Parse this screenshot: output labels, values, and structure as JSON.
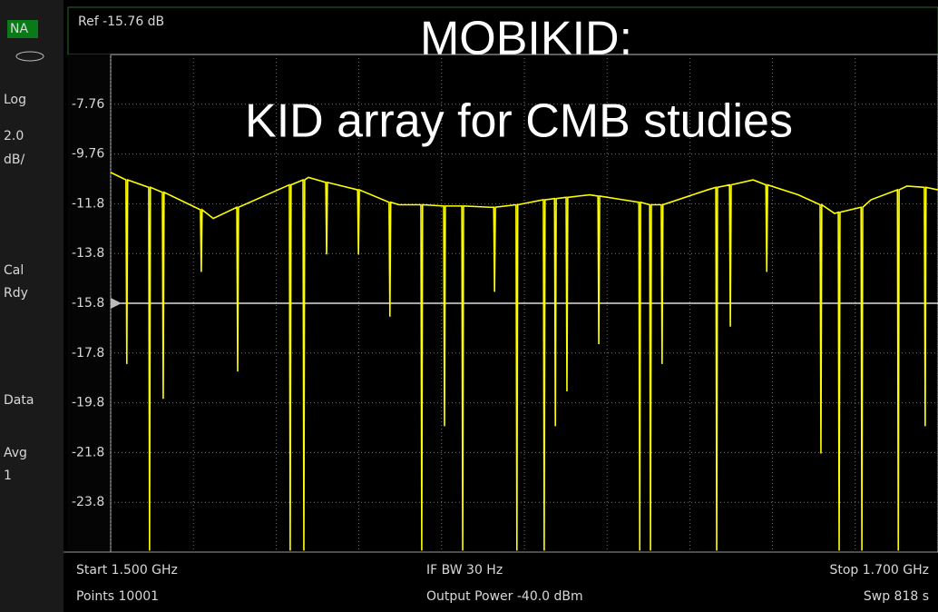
{
  "chart_data": {
    "type": "line",
    "title": "MOBIKID:",
    "subtitle": "KID array for CMB studies",
    "color": "#ffff00",
    "xlim": [
      1.5,
      1.7
    ],
    "xticks": [
      1.5,
      1.52,
      1.54,
      1.56,
      1.58,
      1.6,
      1.62,
      1.64,
      1.66,
      1.68,
      1.7
    ],
    "ylim": [
      -25.76,
      -5.76
    ],
    "yticks": [
      -7.76,
      -9.76,
      {
        "value": -11.76,
        "label": "-11.8"
      },
      {
        "value": -13.76,
        "label": "-13.8"
      },
      {
        "value": -15.76,
        "label": "-15.8"
      },
      {
        "value": -17.76,
        "label": "-17.8"
      },
      {
        "value": -19.76,
        "label": "-19.8"
      },
      {
        "value": -21.76,
        "label": "-21.8"
      },
      {
        "value": -23.76,
        "label": "-23.8"
      }
    ],
    "grid": true,
    "reference_line": {
      "value": -15.76,
      "label": "Ref -15.76 dB"
    },
    "x": [
      1.5,
      1.5037,
      1.5039,
      1.5041,
      1.5092,
      1.5094,
      1.5096,
      1.5125,
      1.5127,
      1.5129,
      1.5217,
      1.5219,
      1.5221,
      1.5248,
      1.5305,
      1.5307,
      1.5309,
      1.5432,
      1.5434,
      1.5436,
      1.5465,
      1.5467,
      1.5469,
      1.5478,
      1.552,
      1.5522,
      1.5524,
      1.5597,
      1.5599,
      1.5601,
      1.5673,
      1.5675,
      1.5677,
      1.5697,
      1.575,
      1.5752,
      1.5754,
      1.5805,
      1.5807,
      1.5809,
      1.5849,
      1.5851,
      1.5853,
      1.5917,
      1.5926,
      1.5928,
      1.593,
      1.598,
      1.5982,
      1.5984,
      1.6046,
      1.6048,
      1.605,
      1.6073,
      1.6075,
      1.6077,
      1.6101,
      1.6103,
      1.6105,
      1.6158,
      1.6178,
      1.618,
      1.6182,
      1.6277,
      1.6279,
      1.6281,
      1.6303,
      1.6305,
      1.6307,
      1.6331,
      1.6333,
      1.6335,
      1.6443,
      1.6463,
      1.6465,
      1.6467,
      1.6496,
      1.6498,
      1.65,
      1.6553,
      1.6584,
      1.6586,
      1.6588,
      1.6662,
      1.6715,
      1.6717,
      1.6719,
      1.675,
      1.6759,
      1.6761,
      1.6763,
      1.6814,
      1.6816,
      1.6818,
      1.6838,
      1.6902,
      1.6904,
      1.6906,
      1.6925,
      1.6967,
      1.6969,
      1.6971,
      1.7
    ],
    "values": [
      -10.5,
      -10.8,
      -18.2,
      -10.8,
      -11.1,
      -25.7,
      -11.1,
      -11.3,
      -19.6,
      -11.3,
      -12.0,
      -14.5,
      -12.0,
      -12.35,
      -11.9,
      -18.5,
      -11.9,
      -11.0,
      -25.7,
      -11.0,
      -10.8,
      -25.7,
      -10.8,
      -10.7,
      -10.9,
      -13.8,
      -10.9,
      -11.2,
      -13.8,
      -11.2,
      -11.7,
      -16.3,
      -11.7,
      -11.8,
      -11.8,
      -25.7,
      -11.8,
      -11.85,
      -20.7,
      -11.85,
      -11.85,
      -25.7,
      -11.85,
      -11.9,
      -11.9,
      -15.3,
      -11.9,
      -11.8,
      -25.7,
      -11.8,
      -11.6,
      -25.7,
      -11.6,
      -11.55,
      -20.7,
      -11.55,
      -11.5,
      -19.3,
      -11.5,
      -11.4,
      -11.45,
      -17.4,
      -11.45,
      -11.7,
      -25.7,
      -11.7,
      -11.8,
      -25.7,
      -11.8,
      -11.8,
      -18.2,
      -11.8,
      -11.2,
      -11.1,
      -25.7,
      -11.1,
      -11.0,
      -16.7,
      -11.0,
      -10.8,
      -11.0,
      -14.5,
      -11.0,
      -11.4,
      -11.8,
      -21.8,
      -11.8,
      -12.15,
      -12.1,
      -25.7,
      -12.1,
      -11.9,
      -25.7,
      -11.9,
      -11.6,
      -11.2,
      -25.7,
      -11.2,
      -11.05,
      -11.1,
      -20.7,
      -11.1,
      -11.2
    ]
  },
  "screen": {
    "sidebar": [
      "NA",
      "Log",
      "2.0",
      "dB/",
      "Cal",
      "Rdy",
      "Data",
      "Avg",
      "1"
    ],
    "footer": {
      "left": [
        "Start 1.500 GHz",
        "Points 10001"
      ],
      "center": [
        "IF BW 30 Hz",
        "Output Power -40.0 dBm"
      ],
      "right": [
        "Stop 1.700 GHz",
        "Swp 818 s"
      ]
    }
  }
}
